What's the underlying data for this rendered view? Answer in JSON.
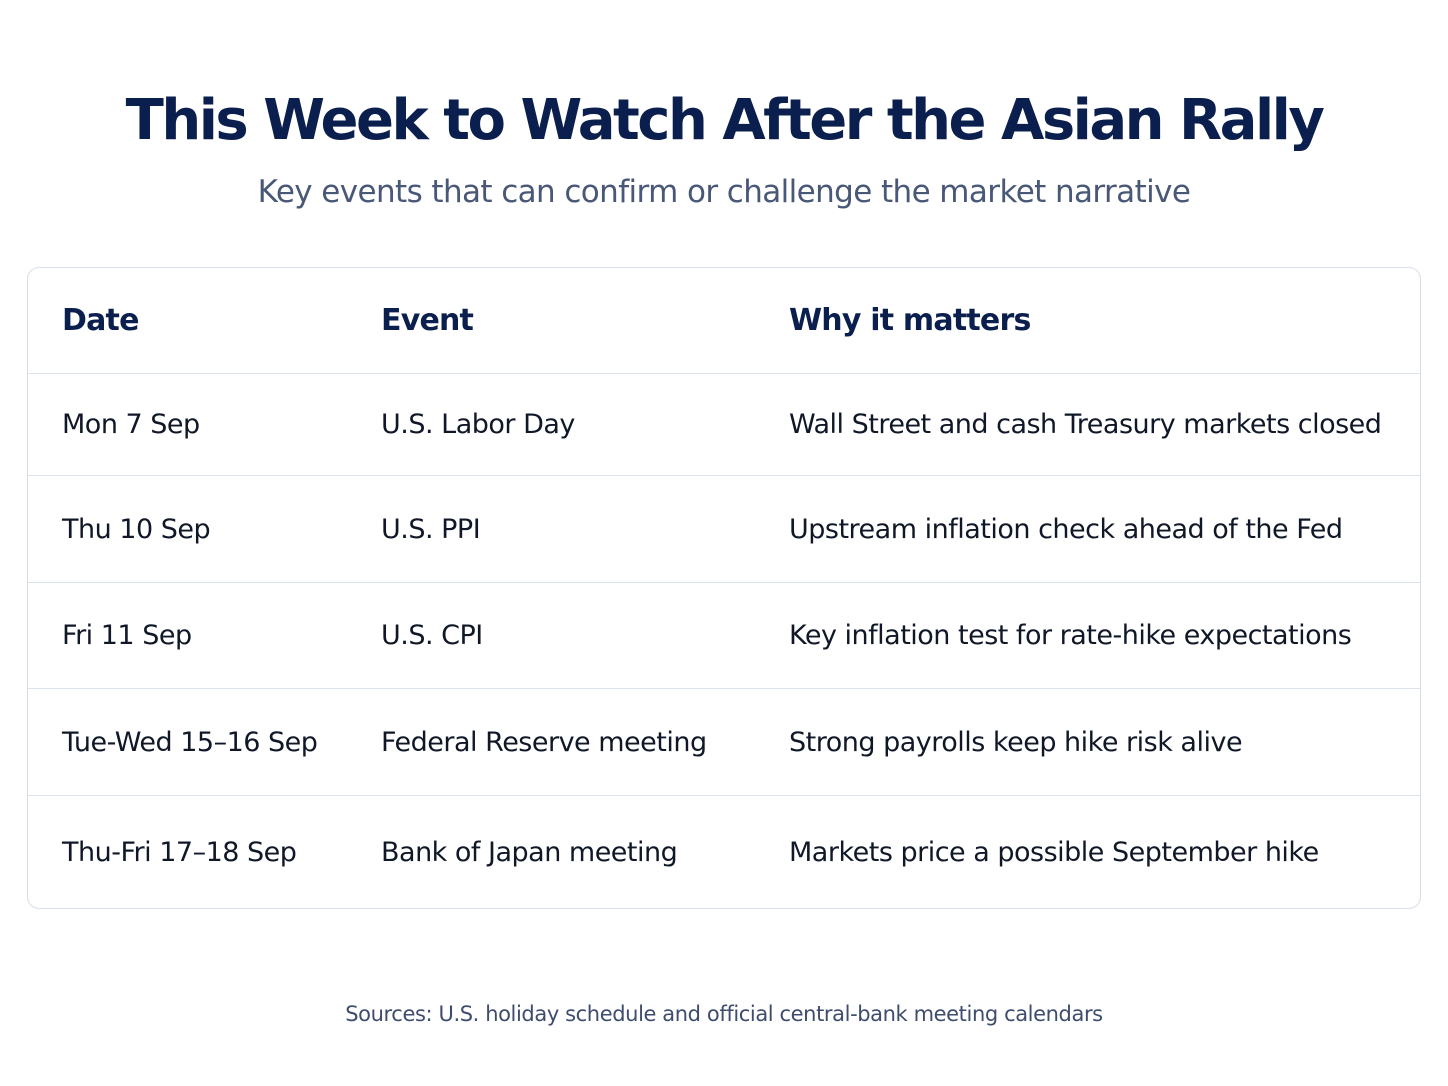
{
  "header": {
    "title": "This Week to Watch After the Asian Rally",
    "subtitle": "Key events that can confirm or challenge the market narrative"
  },
  "table": {
    "columns": [
      "Date",
      "Event",
      "Why it matters"
    ],
    "rows": [
      {
        "date": "Mon 7 Sep",
        "event": "U.S. Labor Day",
        "why": "Wall Street and cash Treasury markets closed"
      },
      {
        "date": "Thu 10 Sep",
        "event": "U.S. PPI",
        "why": "Upstream inflation check ahead of the Fed"
      },
      {
        "date": "Fri 11 Sep",
        "event": "U.S. CPI",
        "why": "Key inflation test for rate-hike expectations"
      },
      {
        "date": "Tue-Wed 15–16 Sep",
        "event": "Federal Reserve meeting",
        "why": "Strong payrolls keep hike risk alive"
      },
      {
        "date": "Thu-Fri 17–18 Sep",
        "event": "Bank of Japan meeting",
        "why": "Markets price a possible September hike"
      }
    ]
  },
  "footer": {
    "sources": "Sources: U.S. holiday schedule and official central-bank meeting calendars"
  },
  "colors": {
    "title": "#0b1f4e",
    "subtitle": "#4a5878",
    "border": "#d8dee8",
    "text": "#101828"
  }
}
